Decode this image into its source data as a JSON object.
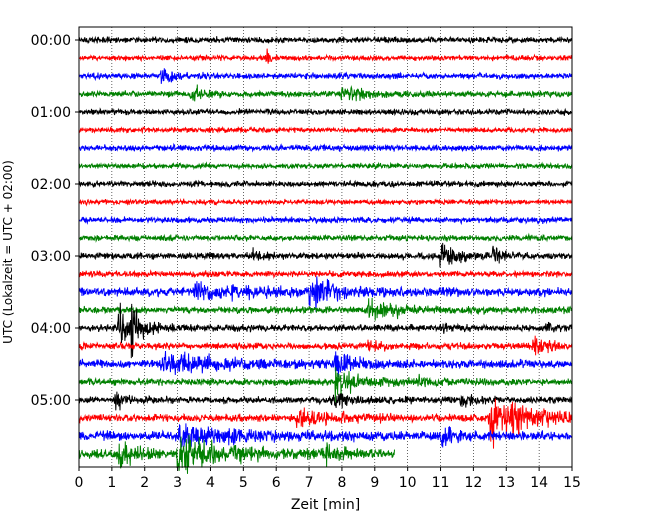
{
  "chart_data": {
    "type": "line",
    "title": "",
    "xlabel": "Zeit  [min]",
    "ylabel": "UTC (Lokalzeit = UTC + 02:00)",
    "xlim": [
      0,
      15
    ],
    "x_ticks": [
      "0",
      "1",
      "2",
      "3",
      "4",
      "5",
      "6",
      "7",
      "8",
      "9",
      "10",
      "11",
      "12",
      "13",
      "14",
      "15"
    ],
    "y_ticks": [
      "00:00",
      "01:00",
      "02:00",
      "03:00",
      "04:00",
      "05:00"
    ],
    "grid": "vertical dotted",
    "trace_minutes": 15,
    "trace_colors": [
      "#000000",
      "#ff0000",
      "#0000ff",
      "#008000"
    ],
    "traces": [
      {
        "start": "00:00",
        "color": "#000000",
        "noise": 0.35,
        "end_min": 15,
        "events": []
      },
      {
        "start": "00:15",
        "color": "#ff0000",
        "noise": 0.3,
        "end_min": 15,
        "events": [
          {
            "t": 5.7,
            "amp": 1.0,
            "dur": 0.1
          }
        ]
      },
      {
        "start": "00:30",
        "color": "#0000ff",
        "noise": 0.35,
        "end_min": 15,
        "events": [
          {
            "t": 2.5,
            "amp": 0.8,
            "dur": 0.4
          }
        ]
      },
      {
        "start": "00:45",
        "color": "#008000",
        "noise": 0.35,
        "end_min": 15,
        "events": [
          {
            "t": 3.4,
            "amp": 0.9,
            "dur": 0.4
          },
          {
            "t": 8.0,
            "amp": 0.7,
            "dur": 1.0
          }
        ]
      },
      {
        "start": "01:00",
        "color": "#000000",
        "noise": 0.35,
        "end_min": 15,
        "events": []
      },
      {
        "start": "01:15",
        "color": "#ff0000",
        "noise": 0.3,
        "end_min": 15,
        "events": []
      },
      {
        "start": "01:30",
        "color": "#0000ff",
        "noise": 0.35,
        "end_min": 15,
        "events": []
      },
      {
        "start": "01:45",
        "color": "#008000",
        "noise": 0.3,
        "end_min": 15,
        "events": []
      },
      {
        "start": "02:00",
        "color": "#000000",
        "noise": 0.35,
        "end_min": 15,
        "events": []
      },
      {
        "start": "02:15",
        "color": "#ff0000",
        "noise": 0.3,
        "end_min": 15,
        "events": []
      },
      {
        "start": "02:30",
        "color": "#0000ff",
        "noise": 0.35,
        "end_min": 15,
        "events": []
      },
      {
        "start": "02:45",
        "color": "#008000",
        "noise": 0.35,
        "end_min": 15,
        "events": []
      },
      {
        "start": "03:00",
        "color": "#000000",
        "noise": 0.4,
        "end_min": 15,
        "events": [
          {
            "t": 5.3,
            "amp": 0.9,
            "dur": 0.2
          },
          {
            "t": 11.0,
            "amp": 1.6,
            "dur": 0.4
          },
          {
            "t": 12.6,
            "amp": 1.2,
            "dur": 0.3
          }
        ]
      },
      {
        "start": "03:15",
        "color": "#ff0000",
        "noise": 0.35,
        "end_min": 15,
        "events": []
      },
      {
        "start": "03:30",
        "color": "#0000ff",
        "noise": 0.5,
        "end_min": 15,
        "events": [
          {
            "t": 3.5,
            "amp": 0.9,
            "dur": 2.0
          },
          {
            "t": 7.0,
            "amp": 2.2,
            "dur": 0.6
          }
        ]
      },
      {
        "start": "03:45",
        "color": "#008000",
        "noise": 0.4,
        "end_min": 15,
        "events": [
          {
            "t": 8.8,
            "amp": 0.9,
            "dur": 1.2
          }
        ]
      },
      {
        "start": "04:00",
        "color": "#000000",
        "noise": 0.4,
        "end_min": 15,
        "events": [
          {
            "t": 1.2,
            "amp": 2.4,
            "dur": 0.6
          },
          {
            "t": 1.6,
            "amp": 1.8,
            "dur": 0.2
          },
          {
            "t": 11.1,
            "amp": 0.8,
            "dur": 0.2
          },
          {
            "t": 14.2,
            "amp": 0.7,
            "dur": 0.2
          }
        ]
      },
      {
        "start": "04:15",
        "color": "#ff0000",
        "noise": 0.4,
        "end_min": 15,
        "events": [
          {
            "t": 8.8,
            "amp": 0.7,
            "dur": 0.3
          },
          {
            "t": 13.8,
            "amp": 1.0,
            "dur": 0.6
          }
        ]
      },
      {
        "start": "04:30",
        "color": "#0000ff",
        "noise": 0.5,
        "end_min": 15,
        "events": [
          {
            "t": 2.5,
            "amp": 1.0,
            "dur": 2.0
          },
          {
            "t": 7.8,
            "amp": 1.3,
            "dur": 0.5
          }
        ]
      },
      {
        "start": "04:45",
        "color": "#008000",
        "noise": 0.4,
        "end_min": 15,
        "events": [
          {
            "t": 7.8,
            "amp": 2.0,
            "dur": 0.6
          },
          {
            "t": 10.3,
            "amp": 0.7,
            "dur": 0.5
          }
        ]
      },
      {
        "start": "05:00",
        "color": "#000000",
        "noise": 0.4,
        "end_min": 15,
        "events": [
          {
            "t": 1.1,
            "amp": 1.0,
            "dur": 0.3
          },
          {
            "t": 7.7,
            "amp": 0.9,
            "dur": 0.5
          },
          {
            "t": 11.6,
            "amp": 0.8,
            "dur": 0.4
          }
        ]
      },
      {
        "start": "05:15",
        "color": "#ff0000",
        "noise": 0.45,
        "end_min": 15,
        "events": [
          {
            "t": 6.6,
            "amp": 1.0,
            "dur": 1.0
          },
          {
            "t": 12.5,
            "amp": 3.0,
            "dur": 1.2
          }
        ]
      },
      {
        "start": "05:30",
        "color": "#0000ff",
        "noise": 0.55,
        "end_min": 15,
        "events": [
          {
            "t": 3.0,
            "amp": 1.2,
            "dur": 1.5
          },
          {
            "t": 11.0,
            "amp": 1.2,
            "dur": 0.4
          }
        ]
      },
      {
        "start": "05:45",
        "color": "#008000",
        "noise": 0.55,
        "end_min": 9.6,
        "events": [
          {
            "t": 1.2,
            "amp": 2.0,
            "dur": 0.4
          },
          {
            "t": 3.0,
            "amp": 2.5,
            "dur": 1.2
          },
          {
            "t": 7.5,
            "amp": 0.9,
            "dur": 0.4
          }
        ]
      }
    ]
  }
}
